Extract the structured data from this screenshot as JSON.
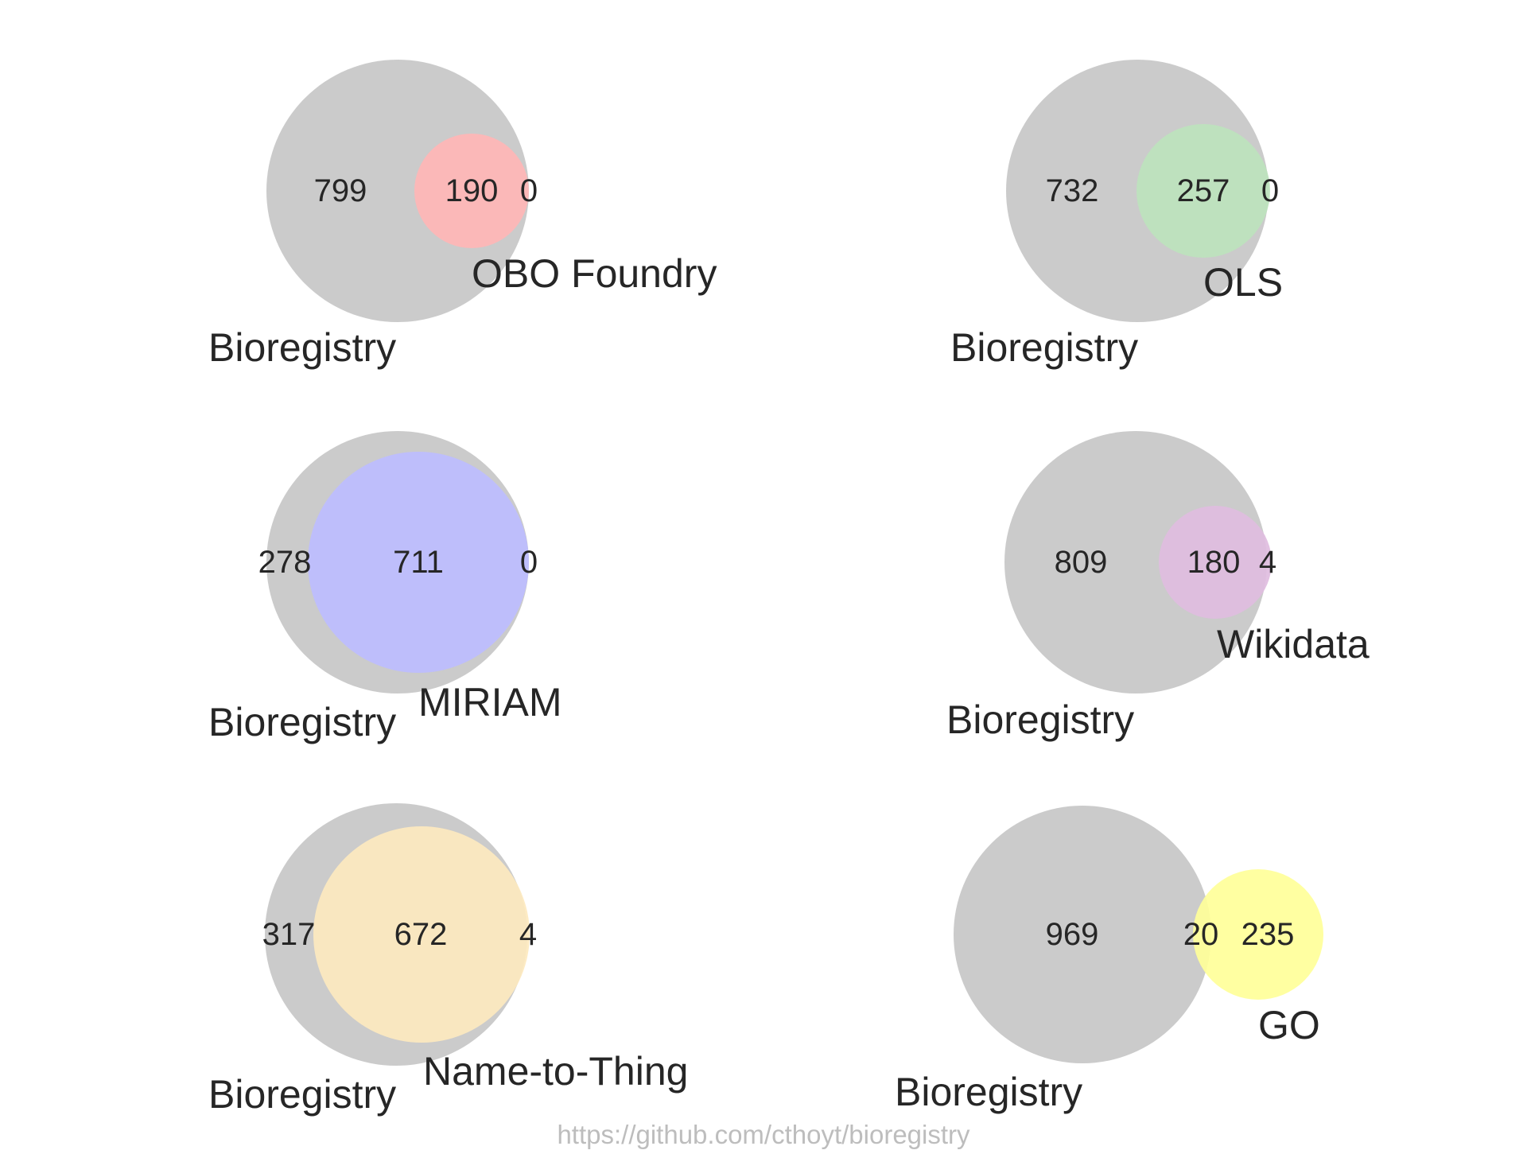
{
  "panels": [
    {
      "left_set": "Bioregistry",
      "right_set": "OBO Foundry",
      "counts": {
        "left_only": 799,
        "both": 190,
        "right_only": 0
      },
      "right_color": "#ffb6b6"
    },
    {
      "left_set": "Bioregistry",
      "right_set": "OLS",
      "counts": {
        "left_only": 732,
        "both": 257,
        "right_only": 0
      },
      "right_color": "#bde3bd"
    },
    {
      "left_set": "Bioregistry",
      "right_set": "MIRIAM",
      "counts": {
        "left_only": 278,
        "both": 711,
        "right_only": 0
      },
      "right_color": "#bdbdff"
    },
    {
      "left_set": "Bioregistry",
      "right_set": "Wikidata",
      "counts": {
        "left_only": 809,
        "both": 180,
        "right_only": 4
      },
      "right_color": "#e0bde0"
    },
    {
      "left_set": "Bioregistry",
      "right_set": "Name-to-Thing",
      "counts": {
        "left_only": 317,
        "both": 672,
        "right_only": 4
      },
      "right_color": "#fde9bf"
    },
    {
      "left_set": "Bioregistry",
      "right_set": "GO",
      "counts": {
        "left_only": 969,
        "both": 20,
        "right_only": 235
      },
      "right_color": "#ffff99"
    }
  ],
  "left_color": "#cbcbcb",
  "footer": "https://github.com/cthoyt/bioregistry"
}
